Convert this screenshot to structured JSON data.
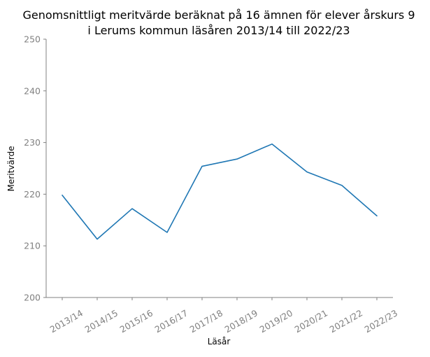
{
  "chart_data": {
    "type": "line",
    "title": "Genomsnittligt meritvärde beräknat på 16 ämnen för elever årskurs 9",
    "subtitle": "i Lerums kommun läsåren 2013/14 till 2022/23",
    "xlabel": "Läsår",
    "ylabel": "Meritvärde",
    "categories": [
      "2013/14",
      "2014/15",
      "2015/16",
      "2016/17",
      "2017/18",
      "2018/19",
      "2019/20",
      "2020/21",
      "2021/22",
      "2022/23"
    ],
    "series": [
      {
        "values": [
          219.8,
          211.3,
          217.2,
          212.6,
          225.4,
          226.8,
          229.7,
          224.3,
          221.7,
          215.8
        ],
        "color": "#1f77b4"
      }
    ],
    "ylim": [
      200,
      250
    ],
    "yticks": [
      "200",
      "210",
      "220",
      "230",
      "240",
      "250"
    ],
    "grid": false,
    "legend": "none"
  }
}
